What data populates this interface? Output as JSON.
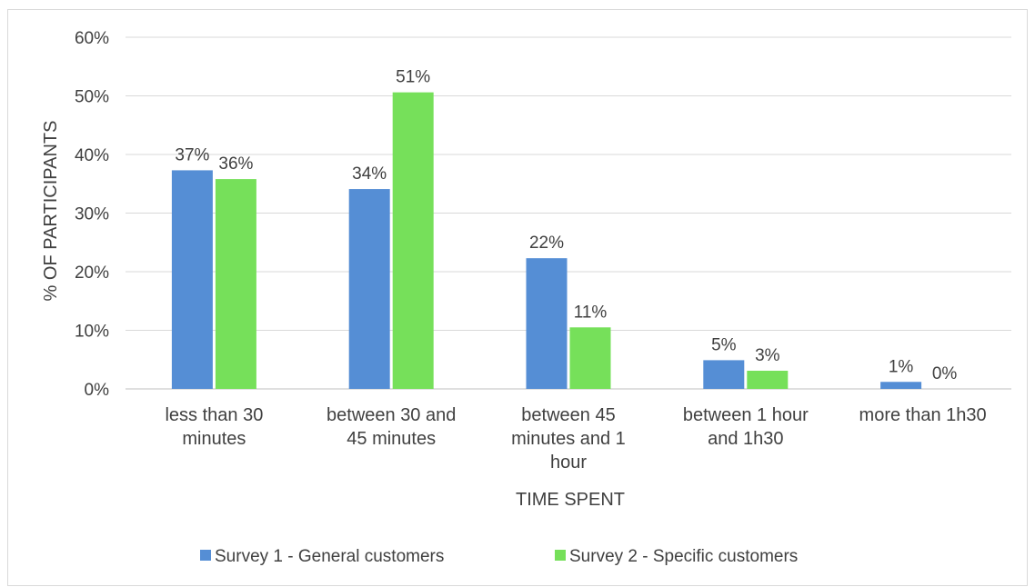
{
  "chart_data": {
    "type": "bar",
    "title": "",
    "xlabel": "TIME SPENT",
    "ylabel": "% OF PARTICIPANTS",
    "ylim": [
      0,
      60
    ],
    "yticks": [
      "0%",
      "10%",
      "20%",
      "30%",
      "40%",
      "50%",
      "60%"
    ],
    "grid": true,
    "legend_position": "bottom",
    "categories": [
      [
        "less than 30",
        "minutes"
      ],
      [
        "between 30 and",
        "45 minutes"
      ],
      [
        "between 45",
        "minutes and 1",
        "hour"
      ],
      [
        "between 1 hour",
        "and 1h30"
      ],
      [
        "more than 1h30"
      ]
    ],
    "series": [
      {
        "name": "Survey 1 - General customers",
        "color": "#558ed5",
        "values": [
          37.3,
          34.1,
          22.3,
          4.9,
          1.2
        ],
        "labels": [
          "37%",
          "34%",
          "22%",
          "5%",
          "1%"
        ]
      },
      {
        "name": "Survey 2 - Specific customers",
        "color": "#76e05a",
        "values": [
          35.8,
          50.6,
          10.5,
          3.1,
          0
        ],
        "labels": [
          "36%",
          "51%",
          "11%",
          "3%",
          "0%"
        ]
      }
    ]
  }
}
